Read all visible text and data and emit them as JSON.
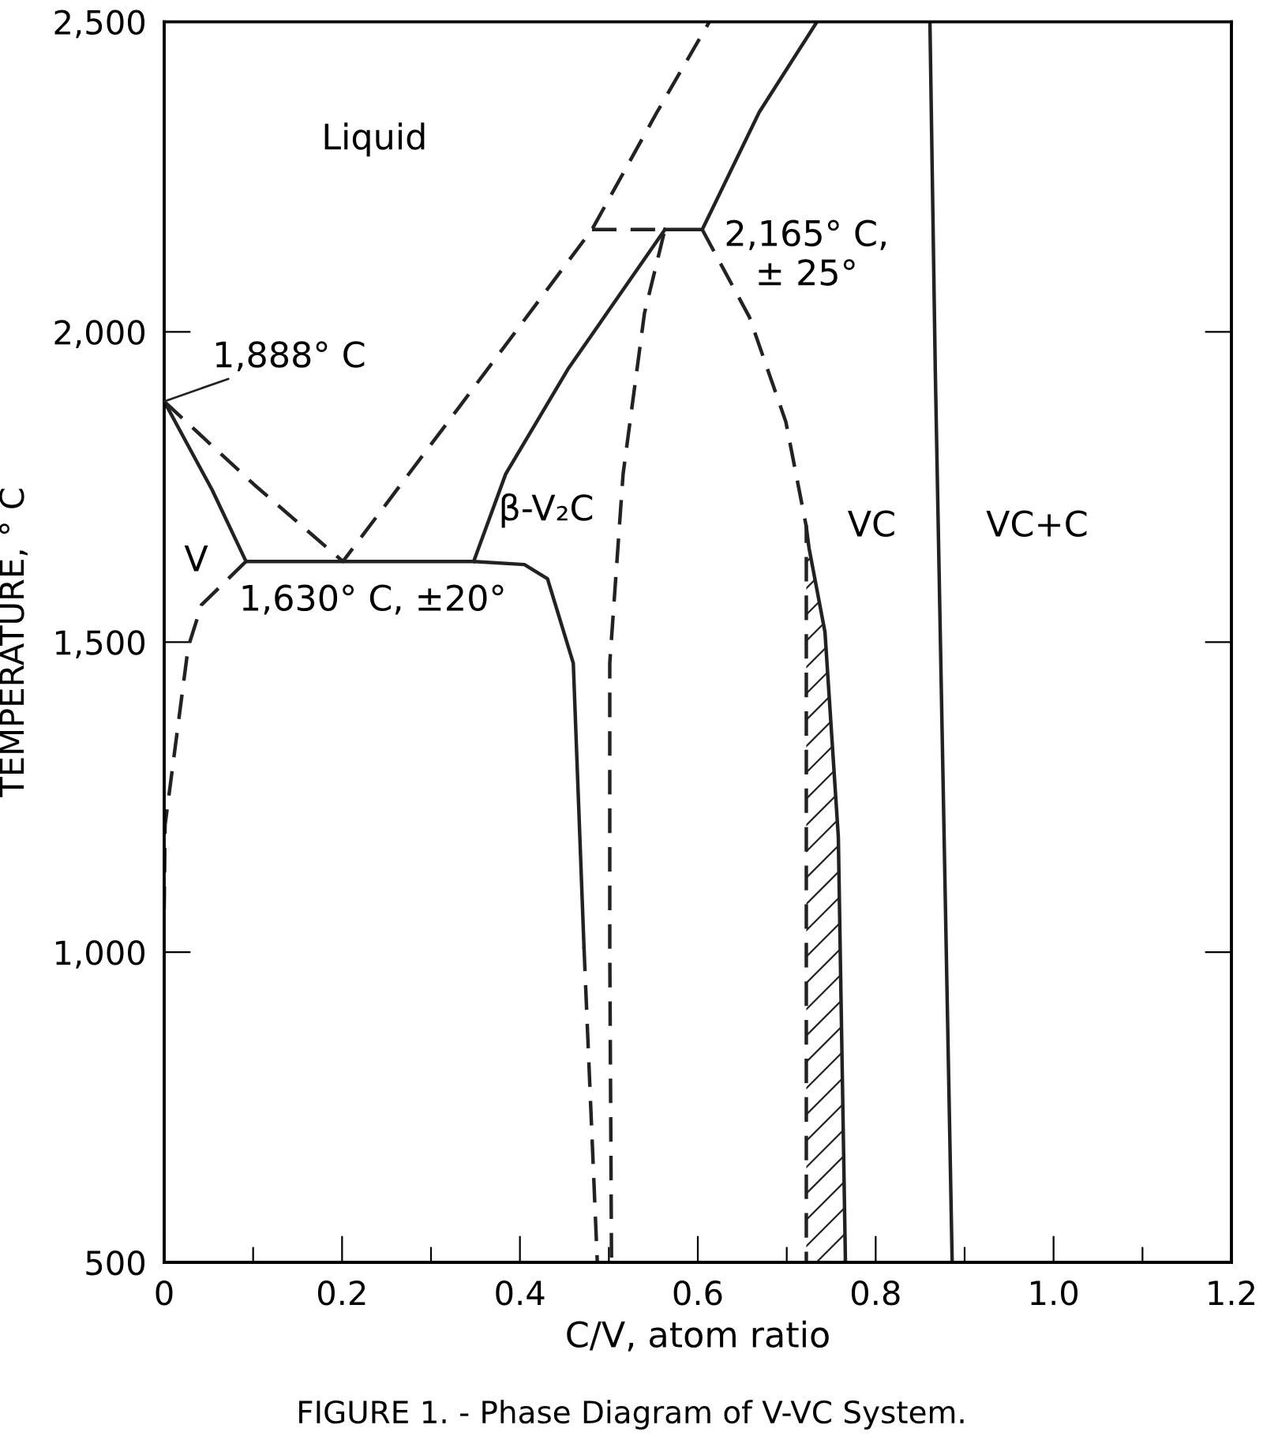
{
  "chart_data": {
    "type": "line",
    "xlabel": "C/V, atom ratio",
    "ylabel": "TEMPERATURE, ° C",
    "xlim": [
      0,
      1.2
    ],
    "xticks": [
      {
        "value": 0,
        "label": "0"
      },
      {
        "value": 0.1,
        "label": null
      },
      {
        "value": 0.2,
        "label": "0.2"
      },
      {
        "value": 0.3,
        "label": null
      },
      {
        "value": 0.4,
        "label": "0.4"
      },
      {
        "value": 0.5,
        "label": null
      },
      {
        "value": 0.6,
        "label": "0.6"
      },
      {
        "value": 0.7,
        "label": null
      },
      {
        "value": 0.8,
        "label": "0.8"
      },
      {
        "value": 0.9,
        "label": null
      },
      {
        "value": 1.0,
        "label": "1.0"
      },
      {
        "value": 1.1,
        "label": null
      },
      {
        "value": 1.2,
        "label": "1.2"
      }
    ],
    "ylim": [
      500,
      2500
    ],
    "yticks": [
      {
        "value": 500,
        "label": "500"
      },
      {
        "value": 1000,
        "label": "1,000"
      },
      {
        "value": 1500,
        "label": "1,500"
      },
      {
        "value": 2000,
        "label": "2,000"
      },
      {
        "value": 2500,
        "label": "2,500"
      }
    ],
    "grid": false,
    "legend": false,
    "series": [
      {
        "color": "#222222",
        "line_style": "solid",
        "x": [
          0,
          0.054,
          0.092,
          0.348,
          0.405,
          0.431,
          0.46,
          0.472
        ],
        "values": [
          1888,
          1745,
          1630,
          1630,
          1625,
          1602,
          1466,
          1009
        ]
      },
      {
        "color": "#222222",
        "line_style": "dashed",
        "x": [
          0,
          0.101,
          0.201,
          0.337,
          0.481,
          0.554,
          0.613
        ],
        "values": [
          1888,
          1754,
          1630,
          1889,
          2165,
          2354,
          2500
        ]
      },
      {
        "color": "#222222",
        "line_style": "dashed",
        "x": [
          0.472,
          0.487
        ],
        "values": [
          1009,
          500
        ]
      },
      {
        "color": "#222222",
        "line_style": "dashed",
        "x": [
          0.092,
          0.042,
          0.027,
          0.001,
          0
        ],
        "values": [
          1630,
          1560,
          1492,
          1205,
          1070
        ]
      },
      {
        "color": "#222222",
        "line_style": "dashed",
        "x": [
          0.481,
          0.563,
          0.54,
          0.516,
          0.501,
          0.501,
          0.503
        ],
        "values": [
          2165,
          2165,
          2030,
          1771,
          1466,
          1009,
          500
        ]
      },
      {
        "color": "#222222",
        "line_style": "solid",
        "x": [
          0.348,
          0.384,
          0.454,
          0.563
        ],
        "values": [
          1630,
          1771,
          1940,
          2165
        ]
      },
      {
        "color": "#222222",
        "line_style": "solid",
        "x": [
          0.563,
          0.605,
          0.669,
          0.734
        ],
        "values": [
          2165,
          2165,
          2354,
          2500
        ]
      },
      {
        "color": "#222222",
        "line_style": "dashed",
        "x": [
          0.605,
          0.658,
          0.699,
          0.722,
          0.722
        ],
        "values": [
          2165,
          2024,
          1855,
          1686,
          500
        ]
      },
      {
        "color": "#222222",
        "line_style": "solid",
        "x": [
          0.722,
          0.725,
          0.743,
          0.758,
          0.766
        ],
        "values": [
          1686,
          1652,
          1516,
          1186,
          500
        ]
      },
      {
        "color": "#222222",
        "line_style": "solid",
        "x": [
          0.861,
          0.867,
          0.886
        ],
        "values": [
          2500,
          1940,
          500
        ]
      },
      {
        "type": "area",
        "color": "#222222",
        "x": [
          0.722,
          0.725,
          0.743,
          0.758,
          0.766,
          0.722
        ],
        "values": [
          1660,
          1652,
          1516,
          1186,
          500,
          500
        ]
      }
    ],
    "annotations": [
      "Liquid",
      {
        "text": "1,888° C",
        "x": 0,
        "y": 1888
      },
      "V",
      {
        "text": "1,630° C, ±20°",
        "x": 0.2,
        "y": 1630
      },
      "β-V₂C",
      {
        "text": "2,165° C,\n± 25°",
        "x": 0.605,
        "y": 2165
      },
      "VC",
      "VC+C",
      "FIGURE 1. - Phase Diagram of V-VC System."
    ]
  }
}
